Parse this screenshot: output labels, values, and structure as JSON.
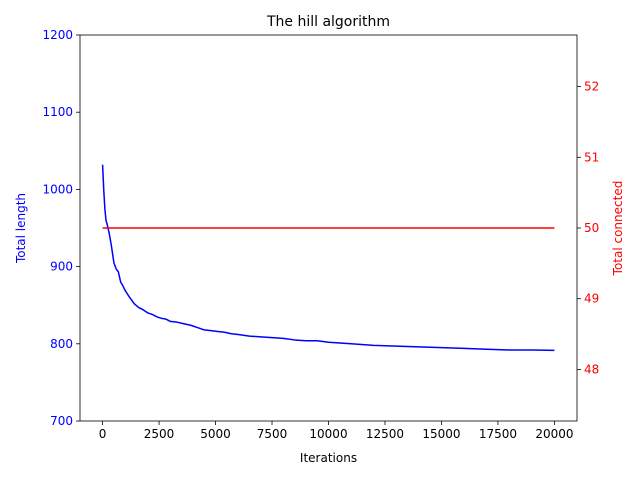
{
  "chart_data": {
    "type": "line",
    "title": "The hill algorithm",
    "xlabel": "Iterations",
    "xlim": [
      -1000,
      21000
    ],
    "xticks": [
      0,
      2500,
      5000,
      7500,
      10000,
      12500,
      15000,
      17500,
      20000
    ],
    "xtick_labels": [
      "0",
      "2500",
      "5000",
      "7500",
      "10000",
      "12500",
      "15000",
      "17500",
      "20000"
    ],
    "y_left": {
      "label": "Total length",
      "color": "#0000ff",
      "lim": [
        700,
        1200
      ],
      "ticks": [
        700,
        800,
        900,
        1000,
        1100,
        1200
      ],
      "tick_labels": [
        "700",
        "800",
        "900",
        "1000",
        "1100",
        "1200"
      ]
    },
    "y_right": {
      "label": "Total connected",
      "color": "#ff0000",
      "lim": [
        47.27,
        52.73
      ],
      "ticks": [
        48,
        49,
        50,
        51,
        52
      ],
      "tick_labels": [
        "48",
        "49",
        "50",
        "51",
        "52"
      ]
    },
    "legend": "none",
    "grid": false,
    "series": [
      {
        "axis": "left",
        "color": "#0000ff",
        "x": [
          0,
          50,
          100,
          150,
          200,
          300,
          400,
          500,
          600,
          700,
          800,
          900,
          1000,
          1200,
          1400,
          1600,
          1800,
          2000,
          2200,
          2400,
          2600,
          2800,
          3000,
          3300,
          3600,
          3900,
          4200,
          4500,
          4800,
          5100,
          5400,
          5700,
          6000,
          6500,
          7000,
          7500,
          8000,
          8500,
          9000,
          9500,
          10000,
          11000,
          12000,
          13000,
          14000,
          15000,
          16000,
          17000,
          18000,
          19000,
          20000
        ],
        "values": [
          1032,
          1000,
          975,
          960,
          955,
          942,
          925,
          905,
          897,
          893,
          880,
          875,
          869,
          860,
          852,
          847,
          844,
          840,
          838,
          835,
          833,
          832,
          829,
          828,
          826,
          824,
          821,
          818,
          817,
          816,
          815,
          813,
          812,
          810,
          809,
          808,
          807,
          805,
          804,
          804,
          802,
          800,
          798,
          797,
          796,
          795,
          794,
          793,
          792,
          792,
          791.5
        ]
      },
      {
        "axis": "right",
        "color": "#ff0000",
        "x": [
          0,
          20000
        ],
        "values": [
          50,
          50
        ]
      }
    ]
  }
}
